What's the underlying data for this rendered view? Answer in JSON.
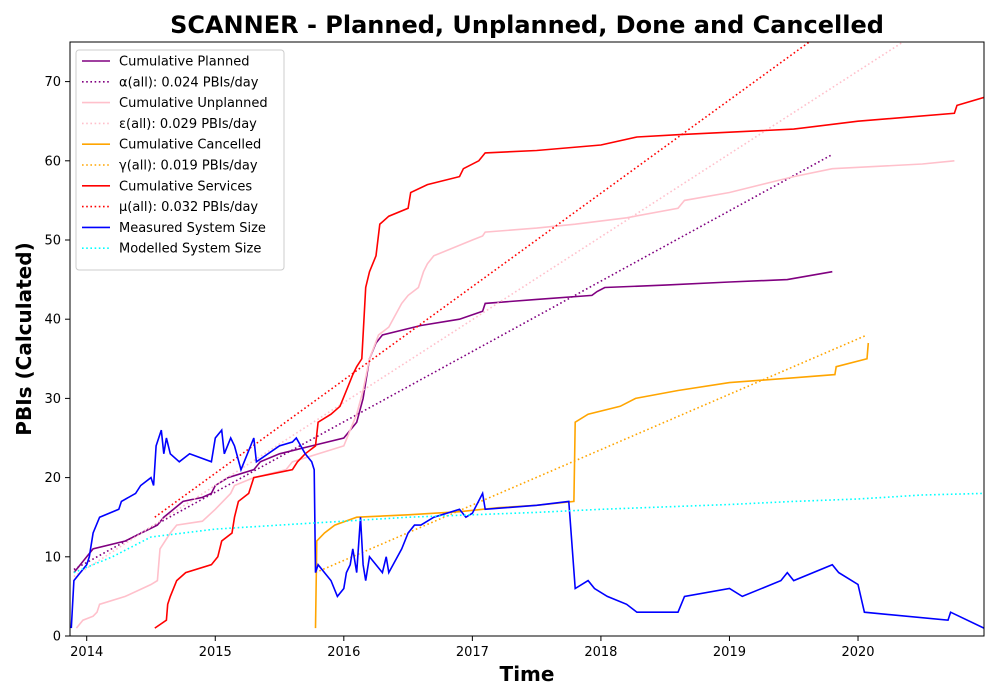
{
  "chart_data": {
    "type": "line",
    "title": "SCANNER - Planned, Unplanned, Done  and Cancelled",
    "xlabel": "Time",
    "ylabel": "PBIs (Calculated)",
    "xlim": [
      2013.87,
      2020.98
    ],
    "ylim": [
      0,
      75
    ],
    "xticks": [
      2014,
      2015,
      2016,
      2017,
      2018,
      2019,
      2020
    ],
    "yticks": [
      0,
      10,
      20,
      30,
      40,
      50,
      60,
      70
    ],
    "grid": false,
    "legend_position": "top-left",
    "series": [
      {
        "name": "Cumulative Planned",
        "color": "#800080",
        "style": "solid",
        "points": [
          [
            2013.9,
            8
          ],
          [
            2014.0,
            10
          ],
          [
            2014.05,
            11
          ],
          [
            2014.3,
            12
          ],
          [
            2014.55,
            14
          ],
          [
            2014.6,
            15
          ],
          [
            2014.75,
            17
          ],
          [
            2014.9,
            17.5
          ],
          [
            2014.97,
            18
          ],
          [
            2015.0,
            19
          ],
          [
            2015.1,
            20
          ],
          [
            2015.3,
            21
          ],
          [
            2015.35,
            22
          ],
          [
            2015.5,
            23
          ],
          [
            2015.75,
            24
          ],
          [
            2016.0,
            25
          ],
          [
            2016.1,
            27
          ],
          [
            2016.15,
            30
          ],
          [
            2016.2,
            35
          ],
          [
            2016.25,
            37
          ],
          [
            2016.3,
            38
          ],
          [
            2016.6,
            39.2
          ],
          [
            2016.9,
            40
          ],
          [
            2017.08,
            41
          ],
          [
            2017.1,
            42
          ],
          [
            2017.5,
            42.5
          ],
          [
            2017.93,
            43
          ],
          [
            2017.97,
            43.5
          ],
          [
            2018.03,
            44
          ],
          [
            2018.5,
            44.3
          ],
          [
            2019.0,
            44.7
          ],
          [
            2019.45,
            45
          ],
          [
            2019.8,
            46
          ]
        ]
      },
      {
        "name": "α(all): 0.024 PBIs/day",
        "color": "#800080",
        "style": "dotted",
        "points": [
          [
            2013.9,
            8.4
          ],
          [
            2019.8,
            60.8
          ]
        ]
      },
      {
        "name": "Cumulative Unplanned",
        "color": "#ffc0cb",
        "style": "solid",
        "points": [
          [
            2013.92,
            1
          ],
          [
            2013.97,
            2
          ],
          [
            2014.05,
            2.5
          ],
          [
            2014.08,
            3
          ],
          [
            2014.1,
            4
          ],
          [
            2014.3,
            5
          ],
          [
            2014.5,
            6.5
          ],
          [
            2014.55,
            7
          ],
          [
            2014.57,
            11
          ],
          [
            2014.65,
            13
          ],
          [
            2014.7,
            14
          ],
          [
            2014.9,
            14.5
          ],
          [
            2015.0,
            16
          ],
          [
            2015.12,
            18
          ],
          [
            2015.15,
            19
          ],
          [
            2015.3,
            20
          ],
          [
            2015.55,
            21
          ],
          [
            2015.6,
            22
          ],
          [
            2016.0,
            24
          ],
          [
            2016.05,
            26
          ],
          [
            2016.1,
            28
          ],
          [
            2016.15,
            31
          ],
          [
            2016.2,
            35
          ],
          [
            2016.27,
            38
          ],
          [
            2016.35,
            39
          ],
          [
            2016.45,
            42
          ],
          [
            2016.5,
            43
          ],
          [
            2016.58,
            44
          ],
          [
            2016.62,
            46
          ],
          [
            2016.65,
            47
          ],
          [
            2016.7,
            48
          ],
          [
            2017.0,
            50
          ],
          [
            2017.08,
            50.5
          ],
          [
            2017.1,
            51
          ],
          [
            2017.5,
            51.5
          ],
          [
            2017.8,
            52
          ],
          [
            2018.2,
            52.8
          ],
          [
            2018.6,
            54
          ],
          [
            2018.65,
            55
          ],
          [
            2019.0,
            56
          ],
          [
            2019.5,
            58
          ],
          [
            2019.8,
            59
          ],
          [
            2020.5,
            59.6
          ],
          [
            2020.75,
            60
          ]
        ]
      },
      {
        "name": "ε(all): 0.029 PBIs/day",
        "color": "#ffc0cb",
        "style": "dotted",
        "points": [
          [
            2013.9,
            7.5
          ],
          [
            2020.35,
            75
          ]
        ]
      },
      {
        "name": "Cumulative Cancelled",
        "color": "#ffa500",
        "style": "solid",
        "points": [
          [
            2015.78,
            1
          ],
          [
            2015.79,
            12
          ],
          [
            2015.85,
            13
          ],
          [
            2015.93,
            14
          ],
          [
            2016.1,
            15
          ],
          [
            2016.5,
            15.3
          ],
          [
            2016.9,
            15.7
          ],
          [
            2017.2,
            16.2
          ],
          [
            2017.5,
            16.5
          ],
          [
            2017.79,
            17
          ],
          [
            2017.8,
            27
          ],
          [
            2017.9,
            28
          ],
          [
            2018.15,
            29
          ],
          [
            2018.27,
            30
          ],
          [
            2018.6,
            31
          ],
          [
            2019.0,
            32
          ],
          [
            2019.5,
            32.6
          ],
          [
            2019.82,
            33
          ],
          [
            2019.83,
            34
          ],
          [
            2020.07,
            35
          ],
          [
            2020.08,
            37
          ]
        ]
      },
      {
        "name": "γ(all): 0.019 PBIs/day",
        "color": "#ffa500",
        "style": "dotted",
        "points": [
          [
            2015.78,
            8
          ],
          [
            2020.07,
            38
          ]
        ]
      },
      {
        "name": "Cumulative Services",
        "color": "#ff0000",
        "style": "solid",
        "points": [
          [
            2014.53,
            1
          ],
          [
            2014.62,
            2
          ],
          [
            2014.63,
            4
          ],
          [
            2014.65,
            5
          ],
          [
            2014.7,
            7
          ],
          [
            2014.77,
            8
          ],
          [
            2014.97,
            9
          ],
          [
            2015.02,
            10
          ],
          [
            2015.05,
            12
          ],
          [
            2015.13,
            13
          ],
          [
            2015.15,
            15
          ],
          [
            2015.18,
            17
          ],
          [
            2015.26,
            18
          ],
          [
            2015.3,
            20
          ],
          [
            2015.6,
            21
          ],
          [
            2015.64,
            22
          ],
          [
            2015.7,
            23
          ],
          [
            2015.78,
            24
          ],
          [
            2015.8,
            27
          ],
          [
            2015.9,
            28
          ],
          [
            2015.97,
            29
          ],
          [
            2016.02,
            31
          ],
          [
            2016.07,
            33
          ],
          [
            2016.1,
            34
          ],
          [
            2016.14,
            35
          ],
          [
            2016.17,
            44
          ],
          [
            2016.2,
            46
          ],
          [
            2016.25,
            48
          ],
          [
            2016.28,
            52
          ],
          [
            2016.35,
            53
          ],
          [
            2016.5,
            54
          ],
          [
            2016.52,
            56
          ],
          [
            2016.65,
            57
          ],
          [
            2016.9,
            58
          ],
          [
            2016.93,
            59
          ],
          [
            2017.05,
            60
          ],
          [
            2017.1,
            61
          ],
          [
            2017.5,
            61.3
          ],
          [
            2018.0,
            62
          ],
          [
            2018.28,
            63
          ],
          [
            2018.6,
            63.3
          ],
          [
            2019.5,
            64
          ],
          [
            2020.0,
            65
          ],
          [
            2020.75,
            66
          ],
          [
            2020.77,
            67
          ],
          [
            2020.98,
            68
          ]
        ]
      },
      {
        "name": "μ(all): 0.032 PBIs/day",
        "color": "#ff0000",
        "style": "dotted",
        "points": [
          [
            2014.53,
            15
          ],
          [
            2019.62,
            75
          ]
        ]
      },
      {
        "name": "Measured System Size",
        "color": "#0000ff",
        "style": "solid",
        "points": [
          [
            2013.88,
            1
          ],
          [
            2013.9,
            7
          ],
          [
            2013.95,
            8
          ],
          [
            2014.0,
            9
          ],
          [
            2014.02,
            10
          ],
          [
            2014.05,
            13
          ],
          [
            2014.1,
            15
          ],
          [
            2014.25,
            16
          ],
          [
            2014.27,
            17
          ],
          [
            2014.38,
            18
          ],
          [
            2014.42,
            19
          ],
          [
            2014.5,
            20
          ],
          [
            2014.52,
            19
          ],
          [
            2014.54,
            24
          ],
          [
            2014.58,
            26
          ],
          [
            2014.6,
            23
          ],
          [
            2014.62,
            25
          ],
          [
            2014.65,
            23
          ],
          [
            2014.72,
            22
          ],
          [
            2014.8,
            23
          ],
          [
            2014.97,
            22
          ],
          [
            2015.0,
            25
          ],
          [
            2015.05,
            26
          ],
          [
            2015.07,
            23
          ],
          [
            2015.12,
            25
          ],
          [
            2015.15,
            24
          ],
          [
            2015.2,
            21
          ],
          [
            2015.3,
            25
          ],
          [
            2015.32,
            22
          ],
          [
            2015.5,
            24
          ],
          [
            2015.6,
            24.5
          ],
          [
            2015.63,
            25
          ],
          [
            2015.7,
            23
          ],
          [
            2015.75,
            22
          ],
          [
            2015.77,
            21
          ],
          [
            2015.78,
            8
          ],
          [
            2015.8,
            9
          ],
          [
            2015.85,
            8
          ],
          [
            2015.9,
            7
          ],
          [
            2015.95,
            5
          ],
          [
            2016.0,
            6
          ],
          [
            2016.02,
            8
          ],
          [
            2016.05,
            9
          ],
          [
            2016.07,
            11
          ],
          [
            2016.1,
            8
          ],
          [
            2016.13,
            15
          ],
          [
            2016.15,
            9
          ],
          [
            2016.17,
            7
          ],
          [
            2016.2,
            10
          ],
          [
            2016.25,
            9
          ],
          [
            2016.3,
            8
          ],
          [
            2016.33,
            10
          ],
          [
            2016.35,
            8
          ],
          [
            2016.45,
            11
          ],
          [
            2016.5,
            13
          ],
          [
            2016.55,
            14
          ],
          [
            2016.6,
            14
          ],
          [
            2016.7,
            15
          ],
          [
            2016.9,
            16
          ],
          [
            2016.95,
            15
          ],
          [
            2017.0,
            15.5
          ],
          [
            2017.08,
            18
          ],
          [
            2017.1,
            16
          ],
          [
            2017.5,
            16.5
          ],
          [
            2017.75,
            17
          ],
          [
            2017.8,
            6
          ],
          [
            2017.9,
            7
          ],
          [
            2017.95,
            6
          ],
          [
            2018.05,
            5
          ],
          [
            2018.2,
            4
          ],
          [
            2018.28,
            3
          ],
          [
            2018.6,
            3
          ],
          [
            2018.65,
            5
          ],
          [
            2019.0,
            6
          ],
          [
            2019.1,
            5
          ],
          [
            2019.4,
            7
          ],
          [
            2019.45,
            8
          ],
          [
            2019.5,
            7
          ],
          [
            2019.8,
            9
          ],
          [
            2019.85,
            8
          ],
          [
            2020.0,
            6.5
          ],
          [
            2020.05,
            3
          ],
          [
            2020.7,
            2
          ],
          [
            2020.72,
            3
          ],
          [
            2020.98,
            1
          ]
        ]
      },
      {
        "name": "Modelled System Size",
        "color": "#00ffff",
        "style": "dotted",
        "points": [
          [
            2013.9,
            8
          ],
          [
            2014.2,
            10
          ],
          [
            2014.5,
            12.5
          ],
          [
            2015.0,
            13.5
          ],
          [
            2015.5,
            14
          ],
          [
            2016.0,
            14.5
          ],
          [
            2016.5,
            15
          ],
          [
            2017.0,
            15.3
          ],
          [
            2017.5,
            15.6
          ],
          [
            2018.0,
            16
          ],
          [
            2018.5,
            16.3
          ],
          [
            2019.0,
            16.6
          ],
          [
            2019.5,
            17
          ],
          [
            2020.0,
            17.3
          ],
          [
            2020.5,
            17.8
          ],
          [
            2020.98,
            18
          ]
        ]
      }
    ]
  }
}
